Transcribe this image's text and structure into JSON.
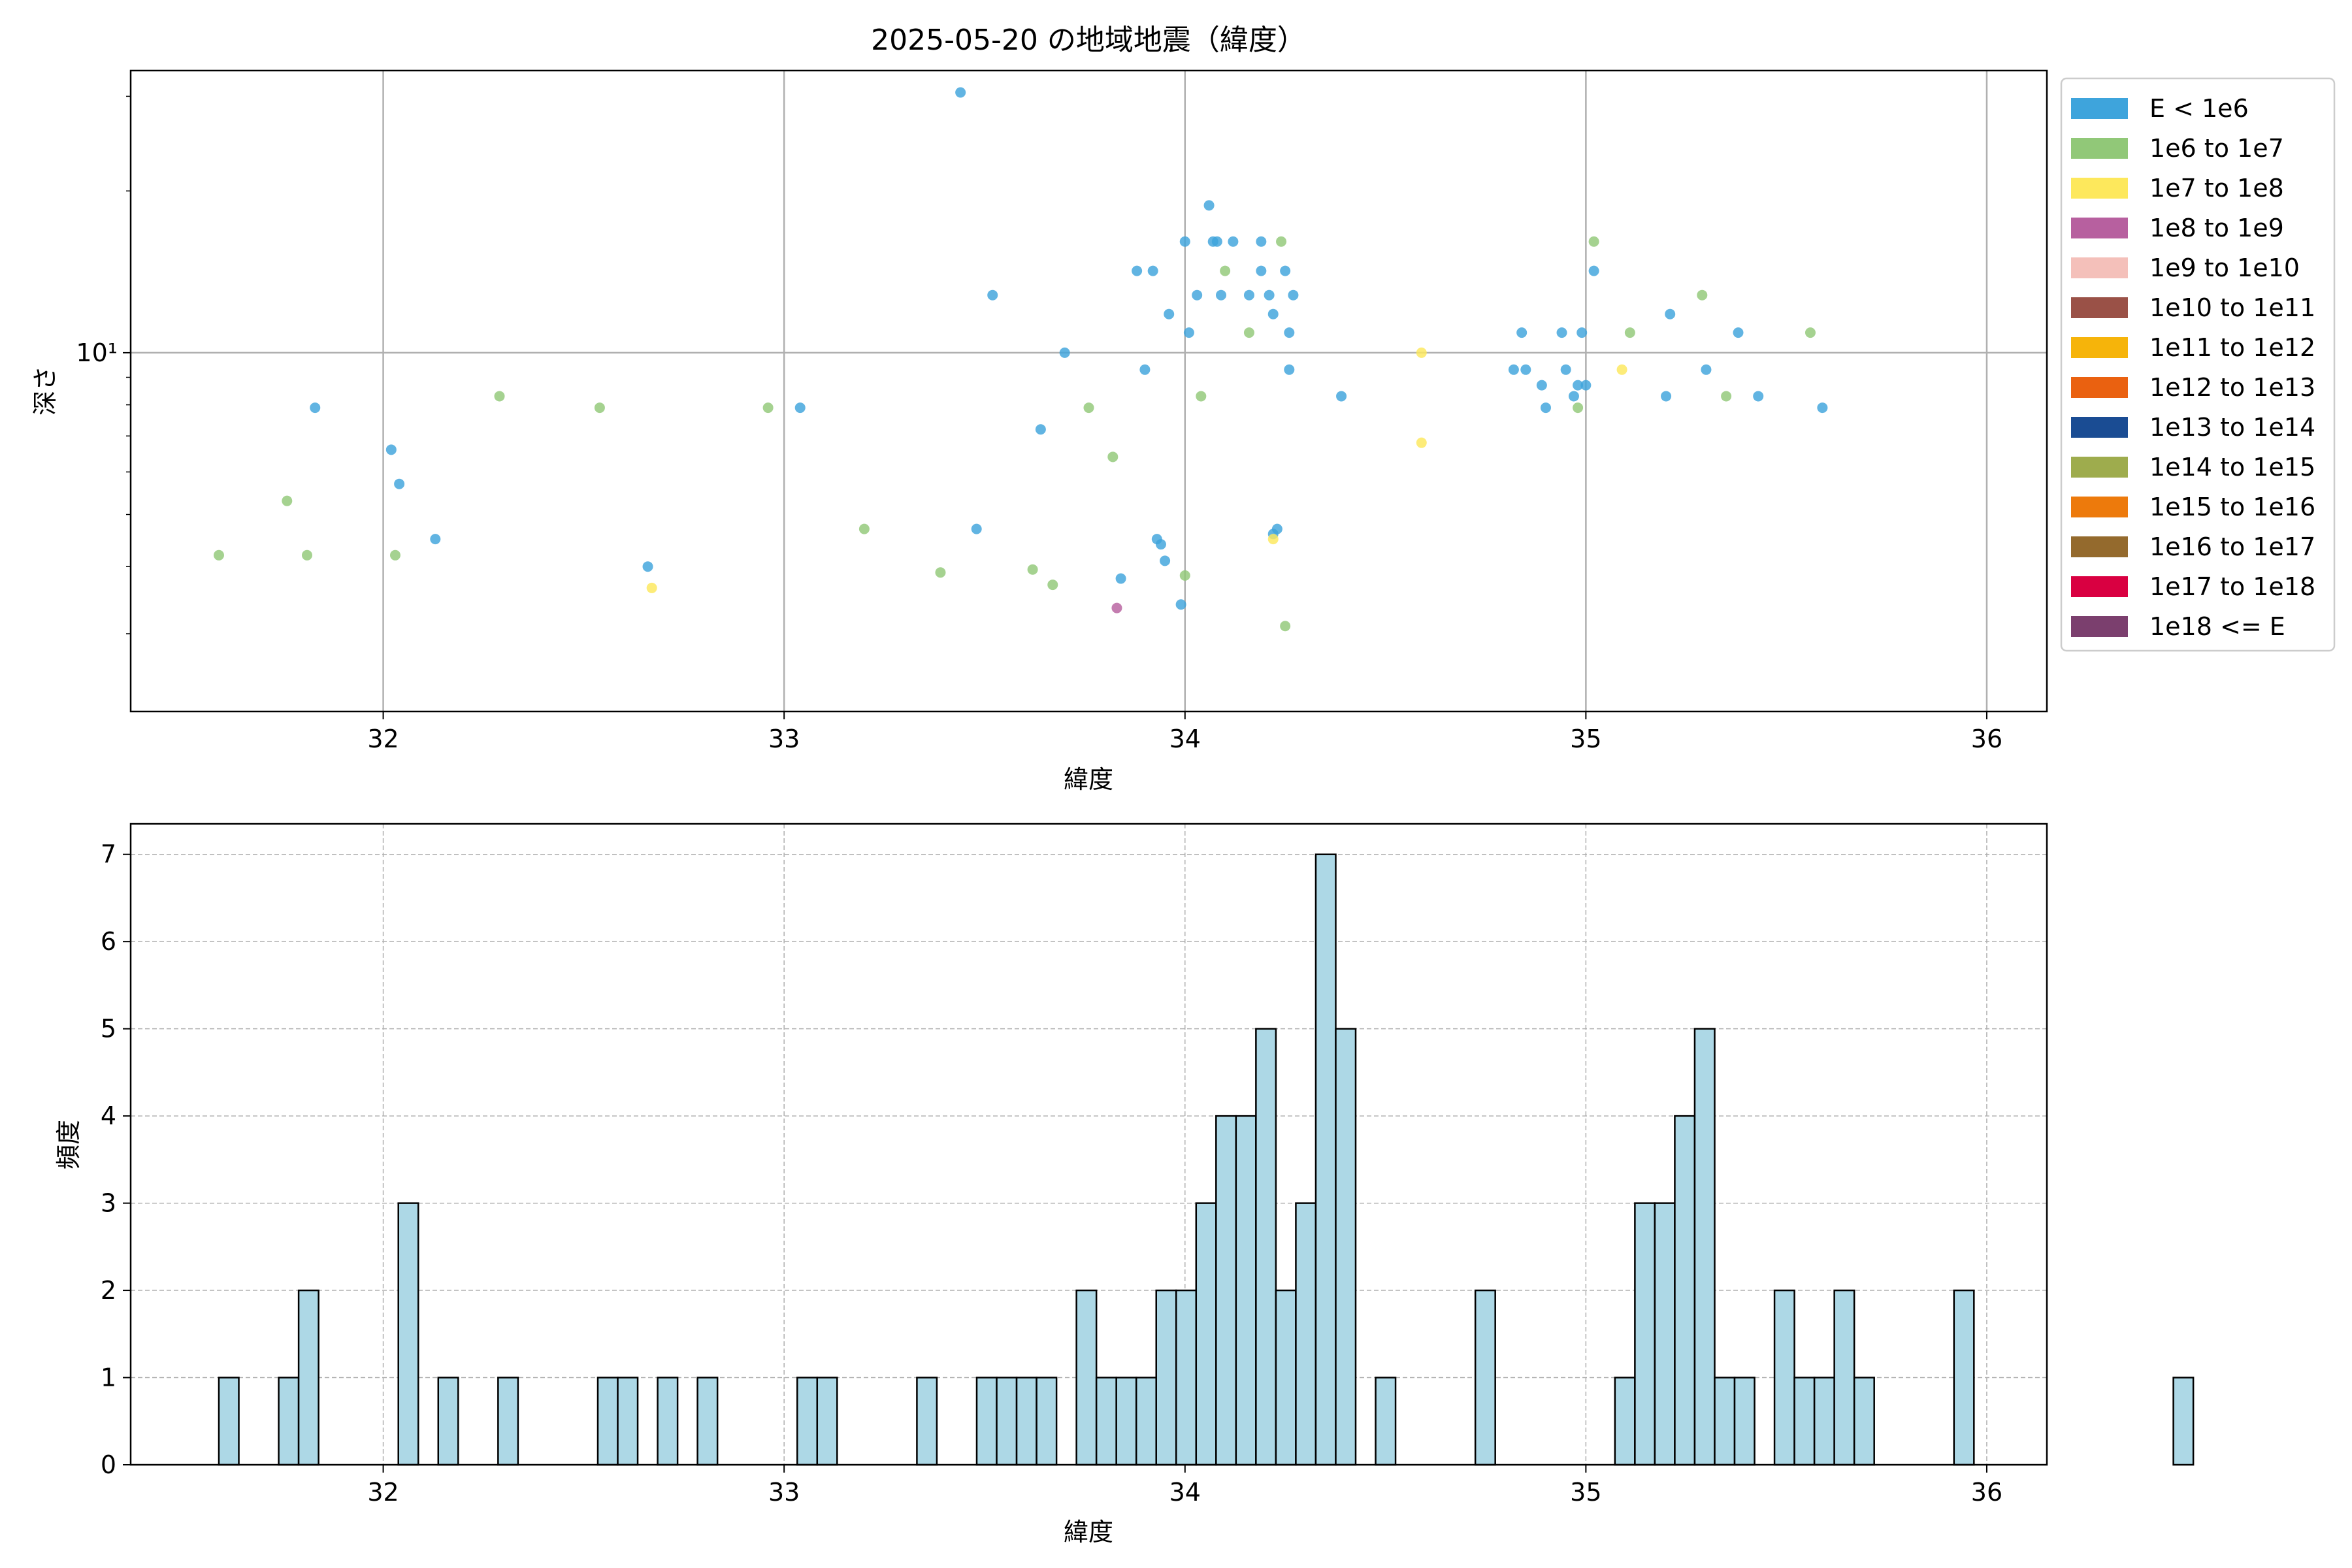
{
  "chart_data": [
    {
      "type": "scatter",
      "title": "2025-05-20 の地域地震（緯度）",
      "xlabel": "緯度",
      "ylabel": "深さ",
      "xlim": [
        31.37,
        36.15
      ],
      "ylim_log": [
        2.15,
        33.5
      ],
      "y_scale": "log",
      "x_ticks": [
        32,
        33,
        34,
        35,
        36
      ],
      "y_major_tick_label": "10¹",
      "grid": true,
      "legend_position": "outside right",
      "legend": [
        {
          "label": "E < 1e6",
          "color": "#3ea4dc"
        },
        {
          "label": "1e6 to 1e7",
          "color": "#91c878"
        },
        {
          "label": "1e7 to 1e8",
          "color": "#fde85c"
        },
        {
          "label": "1e8 to 1e9",
          "color": "#b7609f"
        },
        {
          "label": "1e9 to 1e10",
          "color": "#f4c0ba"
        },
        {
          "label": "1e10 to 1e11",
          "color": "#9a5147"
        },
        {
          "label": "1e11 to 1e12",
          "color": "#f6b40a"
        },
        {
          "label": "1e12 to 1e13",
          "color": "#ea6110"
        },
        {
          "label": "1e13 to 1e14",
          "color": "#1a4c93"
        },
        {
          "label": "1e14 to 1e15",
          "color": "#9eac4d"
        },
        {
          "label": "1e15 to 1e16",
          "color": "#ed7a0c"
        },
        {
          "label": "1e16 to 1e17",
          "color": "#946a2d"
        },
        {
          "label": "1e17 to 1e18",
          "color": "#d90041"
        },
        {
          "label": "1e18 <= E",
          "color": "#7b3f6e"
        }
      ],
      "points": [
        {
          "x": 31.83,
          "y": 7.9,
          "c": 0
        },
        {
          "x": 32.02,
          "y": 6.6,
          "c": 0
        },
        {
          "x": 32.04,
          "y": 5.7,
          "c": 0
        },
        {
          "x": 32.13,
          "y": 4.5,
          "c": 0
        },
        {
          "x": 32.66,
          "y": 4.0,
          "c": 0
        },
        {
          "x": 33.04,
          "y": 7.9,
          "c": 0
        },
        {
          "x": 33.44,
          "y": 30.5,
          "c": 0
        },
        {
          "x": 33.48,
          "y": 4.7,
          "c": 0
        },
        {
          "x": 33.52,
          "y": 12.8,
          "c": 0
        },
        {
          "x": 33.64,
          "y": 7.2,
          "c": 0
        },
        {
          "x": 33.7,
          "y": 10.0,
          "c": 0
        },
        {
          "x": 33.84,
          "y": 3.8,
          "c": 0
        },
        {
          "x": 33.88,
          "y": 14.2,
          "c": 0
        },
        {
          "x": 33.9,
          "y": 9.3,
          "c": 0
        },
        {
          "x": 33.92,
          "y": 14.2,
          "c": 0
        },
        {
          "x": 33.93,
          "y": 4.5,
          "c": 0
        },
        {
          "x": 33.94,
          "y": 4.4,
          "c": 0
        },
        {
          "x": 33.95,
          "y": 4.1,
          "c": 0
        },
        {
          "x": 33.96,
          "y": 11.8,
          "c": 0
        },
        {
          "x": 33.99,
          "y": 3.4,
          "c": 0
        },
        {
          "x": 34.0,
          "y": 16.1,
          "c": 0
        },
        {
          "x": 34.01,
          "y": 10.9,
          "c": 0
        },
        {
          "x": 34.03,
          "y": 12.8,
          "c": 0
        },
        {
          "x": 34.06,
          "y": 18.8,
          "c": 0
        },
        {
          "x": 34.07,
          "y": 16.1,
          "c": 0
        },
        {
          "x": 34.08,
          "y": 16.1,
          "c": 0
        },
        {
          "x": 34.09,
          "y": 12.8,
          "c": 0
        },
        {
          "x": 34.12,
          "y": 16.1,
          "c": 0
        },
        {
          "x": 34.16,
          "y": 12.8,
          "c": 0
        },
        {
          "x": 34.19,
          "y": 16.1,
          "c": 0
        },
        {
          "x": 34.19,
          "y": 14.2,
          "c": 0
        },
        {
          "x": 34.21,
          "y": 12.8,
          "c": 0
        },
        {
          "x": 34.22,
          "y": 11.8,
          "c": 0
        },
        {
          "x": 34.22,
          "y": 4.6,
          "c": 0
        },
        {
          "x": 34.23,
          "y": 4.7,
          "c": 0
        },
        {
          "x": 34.25,
          "y": 14.2,
          "c": 0
        },
        {
          "x": 34.26,
          "y": 10.9,
          "c": 0
        },
        {
          "x": 34.26,
          "y": 9.3,
          "c": 0
        },
        {
          "x": 34.27,
          "y": 12.8,
          "c": 0
        },
        {
          "x": 34.39,
          "y": 8.3,
          "c": 0
        },
        {
          "x": 34.82,
          "y": 9.3,
          "c": 0
        },
        {
          "x": 34.84,
          "y": 10.9,
          "c": 0
        },
        {
          "x": 34.85,
          "y": 9.3,
          "c": 0
        },
        {
          "x": 34.89,
          "y": 8.7,
          "c": 0
        },
        {
          "x": 34.9,
          "y": 7.9,
          "c": 0
        },
        {
          "x": 34.94,
          "y": 10.9,
          "c": 0
        },
        {
          "x": 34.95,
          "y": 9.3,
          "c": 0
        },
        {
          "x": 34.97,
          "y": 8.3,
          "c": 0
        },
        {
          "x": 34.98,
          "y": 8.7,
          "c": 0
        },
        {
          "x": 34.99,
          "y": 10.9,
          "c": 0
        },
        {
          "x": 35.0,
          "y": 8.7,
          "c": 0
        },
        {
          "x": 35.02,
          "y": 14.2,
          "c": 0
        },
        {
          "x": 35.2,
          "y": 8.3,
          "c": 0
        },
        {
          "x": 35.21,
          "y": 11.8,
          "c": 0
        },
        {
          "x": 35.3,
          "y": 9.3,
          "c": 0
        },
        {
          "x": 35.38,
          "y": 10.9,
          "c": 0
        },
        {
          "x": 35.43,
          "y": 8.3,
          "c": 0
        },
        {
          "x": 35.59,
          "y": 7.9,
          "c": 0
        },
        {
          "x": 31.59,
          "y": 4.2,
          "c": 1
        },
        {
          "x": 31.76,
          "y": 5.3,
          "c": 1
        },
        {
          "x": 31.81,
          "y": 4.2,
          "c": 1
        },
        {
          "x": 32.03,
          "y": 4.2,
          "c": 1
        },
        {
          "x": 32.29,
          "y": 8.3,
          "c": 1
        },
        {
          "x": 32.54,
          "y": 7.9,
          "c": 1
        },
        {
          "x": 32.96,
          "y": 7.9,
          "c": 1
        },
        {
          "x": 33.2,
          "y": 4.7,
          "c": 1
        },
        {
          "x": 33.39,
          "y": 3.9,
          "c": 1
        },
        {
          "x": 33.62,
          "y": 3.95,
          "c": 1
        },
        {
          "x": 33.67,
          "y": 3.7,
          "c": 1
        },
        {
          "x": 33.76,
          "y": 7.9,
          "c": 1
        },
        {
          "x": 33.82,
          "y": 6.4,
          "c": 1
        },
        {
          "x": 34.0,
          "y": 3.85,
          "c": 1
        },
        {
          "x": 34.04,
          "y": 8.3,
          "c": 1
        },
        {
          "x": 34.1,
          "y": 14.2,
          "c": 1
        },
        {
          "x": 34.16,
          "y": 10.9,
          "c": 1
        },
        {
          "x": 34.24,
          "y": 16.1,
          "c": 1
        },
        {
          "x": 34.25,
          "y": 3.1,
          "c": 1
        },
        {
          "x": 34.98,
          "y": 7.9,
          "c": 1
        },
        {
          "x": 35.02,
          "y": 16.1,
          "c": 1
        },
        {
          "x": 35.11,
          "y": 10.9,
          "c": 1
        },
        {
          "x": 35.29,
          "y": 12.8,
          "c": 1
        },
        {
          "x": 35.35,
          "y": 8.3,
          "c": 1
        },
        {
          "x": 35.56,
          "y": 10.9,
          "c": 1
        },
        {
          "x": 32.67,
          "y": 3.65,
          "c": 2
        },
        {
          "x": 34.22,
          "y": 4.5,
          "c": 2
        },
        {
          "x": 34.59,
          "y": 10.0,
          "c": 2
        },
        {
          "x": 34.59,
          "y": 6.8,
          "c": 2
        },
        {
          "x": 35.09,
          "y": 9.3,
          "c": 2
        },
        {
          "x": 33.83,
          "y": 3.35,
          "c": 3
        }
      ]
    },
    {
      "type": "bar",
      "title": "",
      "xlabel": "緯度",
      "ylabel": "頻度",
      "xlim": [
        31.37,
        36.15
      ],
      "ylim": [
        0,
        7.35
      ],
      "x_ticks": [
        32,
        33,
        34,
        35,
        36
      ],
      "y_ticks": [
        0,
        1,
        2,
        3,
        4,
        5,
        6,
        7
      ],
      "grid": true,
      "bar_color": "#add8e6",
      "bin_start": 31.59,
      "bin_width": 0.04975,
      "values": [
        1,
        0,
        0,
        1,
        2,
        0,
        0,
        0,
        0,
        3,
        0,
        1,
        0,
        0,
        1,
        0,
        0,
        0,
        0,
        1,
        1,
        0,
        1,
        0,
        1,
        0,
        0,
        0,
        0,
        1,
        1,
        0,
        0,
        0,
        0,
        1,
        0,
        0,
        1,
        1,
        1,
        1,
        0,
        2,
        1,
        1,
        1,
        2,
        2,
        3,
        4,
        4,
        5,
        2,
        3,
        7,
        5,
        0,
        1,
        0,
        0,
        0,
        0,
        2,
        0,
        0,
        0,
        0,
        0,
        0,
        1,
        3,
        3,
        4,
        5,
        1,
        1,
        0,
        2,
        1,
        1,
        2,
        1,
        0,
        0,
        0,
        0,
        2,
        0,
        0,
        0,
        0,
        0,
        0,
        0,
        0,
        0,
        0,
        1
      ]
    }
  ]
}
